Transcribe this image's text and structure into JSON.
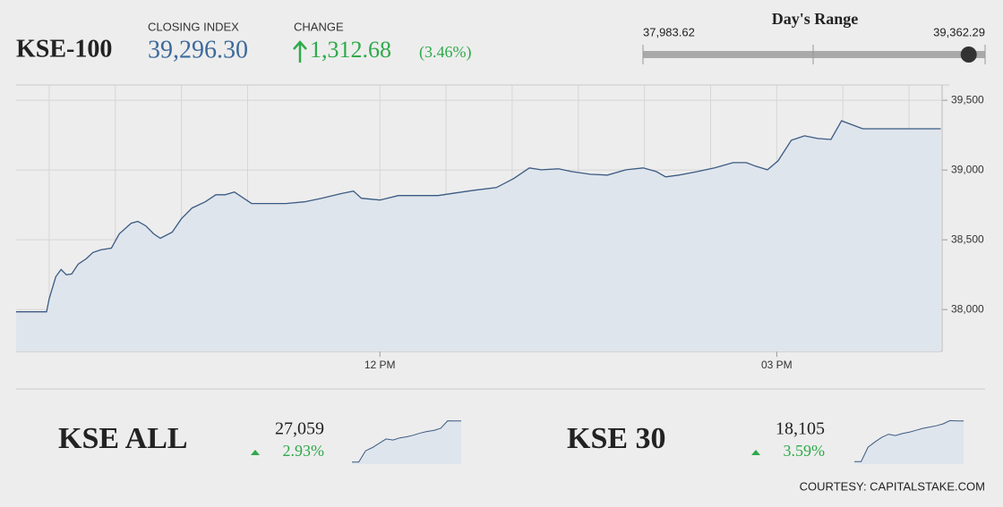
{
  "header": {
    "index_name": "KSE-100",
    "closing_label": "CLOSING INDEX",
    "closing": {
      "value": 39296.3,
      "label": "39,296.30"
    },
    "change_label": "CHANGE",
    "change": "1,312.68",
    "change_pct": "(3.46%)"
  },
  "range": {
    "title": "Day's Range",
    "min": {
      "value": 37983.62,
      "label": "37,983.62"
    },
    "max": {
      "value": 39362.29,
      "label": "39,362.29"
    }
  },
  "chart_data": [
    {
      "type": "line",
      "x": [
        9.25,
        9.48,
        9.5,
        9.55,
        9.59,
        9.63,
        9.67,
        9.72,
        9.78,
        9.83,
        9.89,
        9.97,
        10.03,
        10.12,
        10.17,
        10.23,
        10.29,
        10.34,
        10.43,
        10.5,
        10.58,
        10.68,
        10.76,
        10.83,
        10.9,
        10.97,
        11.03,
        11.16,
        11.29,
        11.43,
        11.56,
        11.7,
        11.8,
        11.86,
        12.0,
        12.14,
        12.3,
        12.44,
        12.57,
        12.71,
        12.88,
        13.01,
        13.13,
        13.22,
        13.35,
        13.45,
        13.59,
        13.72,
        13.86,
        13.99,
        14.09,
        14.16,
        14.26,
        14.4,
        14.53,
        14.67,
        14.77,
        14.84,
        14.93,
        15.01,
        15.11,
        15.21,
        15.31,
        15.41,
        15.49,
        15.65,
        16.24
      ],
      "values": [
        37984,
        37984,
        38077,
        38236,
        38287,
        38249,
        38255,
        38326,
        38364,
        38409,
        38428,
        38440,
        38543,
        38619,
        38632,
        38600,
        38543,
        38511,
        38555,
        38651,
        38728,
        38772,
        38823,
        38823,
        38843,
        38798,
        38760,
        38760,
        38760,
        38772,
        38798,
        38830,
        38849,
        38798,
        38785,
        38817,
        38817,
        38817,
        38836,
        38855,
        38874,
        38938,
        39015,
        39002,
        39009,
        38989,
        38970,
        38964,
        39002,
        39015,
        38989,
        38951,
        38964,
        38989,
        39015,
        39053,
        39053,
        39028,
        39002,
        39066,
        39213,
        39245,
        39226,
        39219,
        39353,
        39296,
        39296
      ],
      "xlim": [
        9.25,
        16.25
      ],
      "xticks": [
        {
          "value": 12,
          "label": "12 PM"
        },
        {
          "value": 15,
          "label": "03 PM"
        }
      ],
      "xgrid": [
        9.5,
        10,
        10.5,
        11,
        12,
        12.5,
        13,
        13.5,
        14,
        14.5,
        15,
        15.5,
        16
      ],
      "ylim": [
        37700,
        39610
      ],
      "yticks": [
        {
          "value": 38000,
          "label": "38,000"
        },
        {
          "value": 38500,
          "label": "38,500"
        },
        {
          "value": 39000,
          "label": "39,000"
        },
        {
          "value": 39500,
          "label": "39,500"
        }
      ],
      "grid": true,
      "color": "#3b5b82",
      "fill": "#dfe5ed"
    },
    {
      "type": "line",
      "title": "KSE ALL",
      "current": "27,059",
      "change": "2.93%",
      "values": [
        26289,
        26289,
        26500,
        26560,
        26640,
        26720,
        26700,
        26740,
        26760,
        26790,
        26830,
        26860,
        26880,
        26920,
        27060,
        27059,
        27059
      ],
      "ylim": [
        26250,
        27070
      ],
      "color": "#3b5b82",
      "fill": "#dfe5ed"
    },
    {
      "type": "line",
      "title": "KSE 30",
      "current": "18,105",
      "change": "3.59%",
      "values": [
        17478,
        17478,
        17700,
        17780,
        17850,
        17900,
        17880,
        17910,
        17930,
        17960,
        17990,
        18010,
        18030,
        18060,
        18110,
        18105,
        18105
      ],
      "ylim": [
        17440,
        18115
      ],
      "color": "#3b5b82",
      "fill": "#dfe5ed"
    }
  ],
  "footer": "COURTESY: CAPITALSTAKE.COM"
}
